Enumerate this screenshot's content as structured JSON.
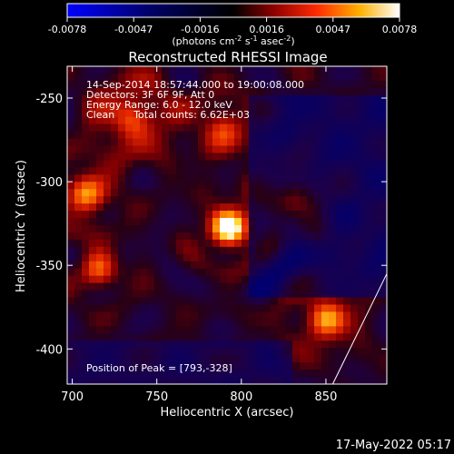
{
  "chart_data": {
    "type": "heatmap",
    "title": "Reconstructed RHESSI Image",
    "xlabel": "Heliocentric X (arcsec)",
    "ylabel": "Heliocentric Y (arcsec)",
    "xlim": [
      697,
      886
    ],
    "ylim": [
      -421,
      -231
    ],
    "x_ticks": [
      700,
      750,
      800,
      850
    ],
    "y_ticks": [
      -250,
      -300,
      -350,
      -400
    ],
    "colorbar": {
      "range": [
        -0.0078,
        0.0078
      ],
      "ticks": [
        "-0.0078",
        "-0.0047",
        "-0.0016",
        "0.0016",
        "0.0047",
        "0.0078"
      ],
      "label_base": "(photons cm",
      "label_exp1": "-2",
      "label_mid": " s",
      "label_exp2": "-1",
      "label_mid2": " asec",
      "label_exp3": "-2",
      "label_end": ")"
    },
    "annotations": [
      "14-Sep-2014 18:57:44.000 to 19:00:08.000",
      "Detectors: 3F 6F 9F, Att 0",
      "Energy Range: 6.0 - 12.0 keV",
      "Clean      Total counts: 6.62E+03"
    ],
    "peak_label": "Position of Peak = [793,-328]",
    "peak": [
      793,
      -328
    ],
    "sources": [
      {
        "x": 793,
        "y": -328,
        "amp": 1.0,
        "sigma": 9
      },
      {
        "x": 708,
        "y": -308,
        "amp": 0.62,
        "sigma": 10
      },
      {
        "x": 715,
        "y": -352,
        "amp": 0.5,
        "sigma": 9
      },
      {
        "x": 850,
        "y": -382,
        "amp": 0.62,
        "sigma": 11
      },
      {
        "x": 735,
        "y": -262,
        "amp": 0.45,
        "sigma": 16
      },
      {
        "x": 790,
        "y": -268,
        "amp": 0.4,
        "sigma": 12
      },
      {
        "x": 830,
        "y": -312,
        "amp": 0.35,
        "sigma": 14
      }
    ],
    "limb_line": [
      [
        854,
        -421
      ],
      [
        886,
        -355
      ]
    ]
  },
  "footer": {
    "date": "17-May-2022 05:17"
  }
}
